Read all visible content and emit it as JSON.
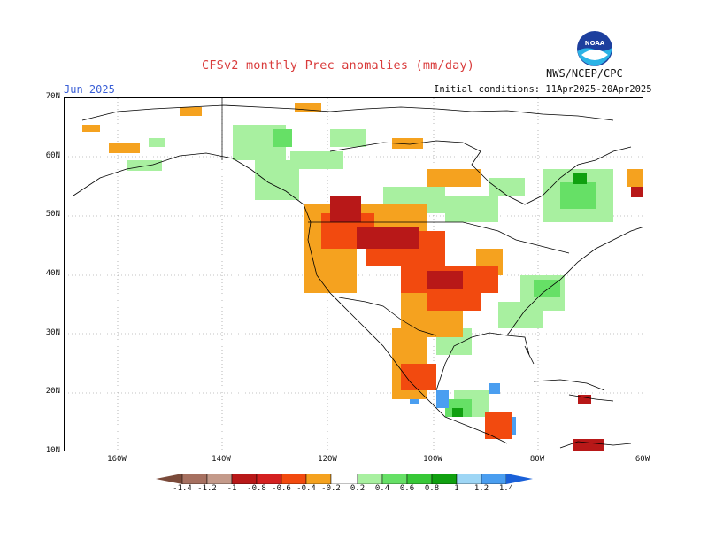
{
  "title": "CFSv2 monthly Prec anomalies (mm/day)",
  "agency": "NWS/NCEP/CPC",
  "logo_text": "NOAA",
  "month": "Jun 2025",
  "initial_conditions": "Initial conditions: 11Apr2025-20Apr2025",
  "lat_labels": [
    "70N",
    "60N",
    "50N",
    "40N",
    "30N",
    "20N",
    "10N"
  ],
  "lon_labels": [
    "160W",
    "140W",
    "120W",
    "100W",
    "80W",
    "60W"
  ],
  "colorbar": {
    "labels": [
      "-1.4",
      "-1.2",
      "-1",
      "-0.8",
      "-0.6",
      "-0.4",
      "-0.2",
      "0.2",
      "0.4",
      "0.6",
      "0.8",
      "1",
      "1.2",
      "1.4"
    ],
    "colors": [
      "#7a4a3a",
      "#a67060",
      "#c49a8a",
      "#b81818",
      "#d42020",
      "#f24a0f",
      "#f5a21f",
      "#ffffff",
      "#a8f0a0",
      "#66e066",
      "#38c838",
      "#10a010",
      "#9ed6f5",
      "#4a9ef0",
      "#1a60d8"
    ]
  },
  "colors": {
    "title": "#d93b3b",
    "month": "#3a5fd6",
    "land_outline": "#000000",
    "grid": "#888888"
  },
  "icons": [
    "noaa-logo-icon"
  ]
}
